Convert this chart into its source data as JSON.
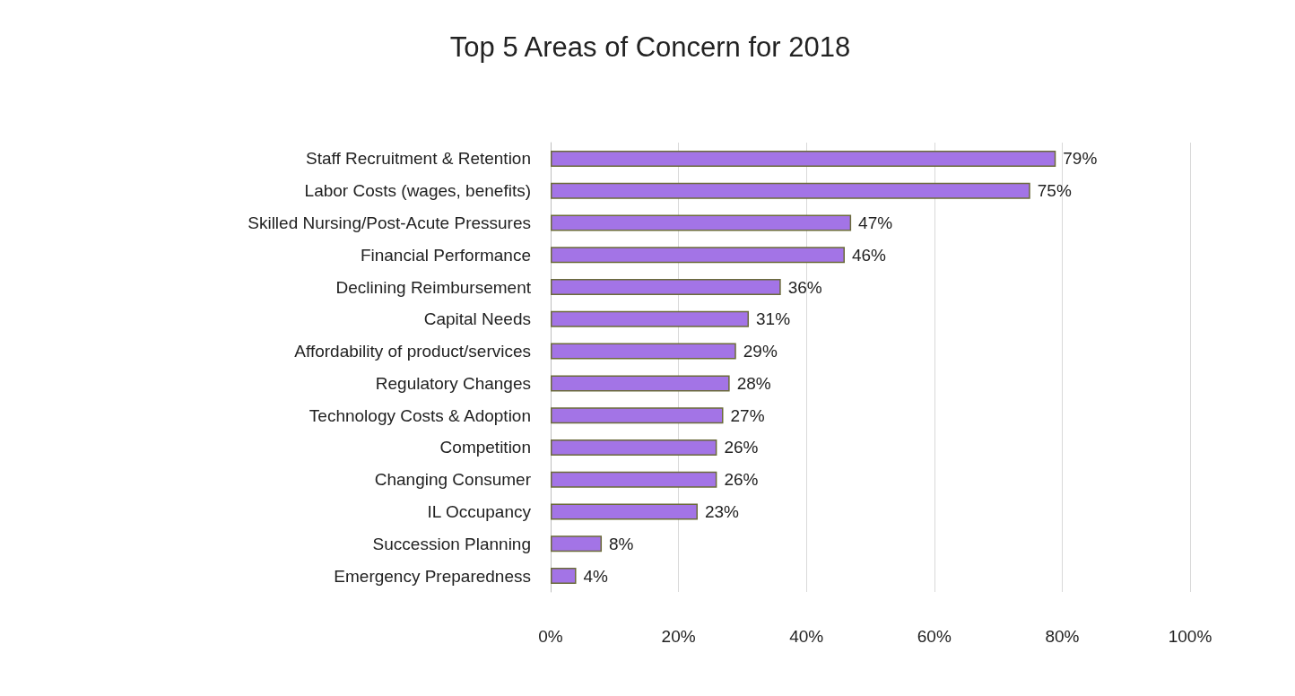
{
  "chart_data": {
    "type": "bar",
    "orientation": "horizontal",
    "title": "Top 5 Areas of Concern for 2018",
    "categories": [
      "Staff Recruitment & Retention",
      "Labor Costs (wages, benefits)",
      "Skilled Nursing/Post-Acute Pressures",
      "Financial Performance",
      "Declining Reimbursement",
      "Capital Needs",
      "Affordability of product/services",
      "Regulatory Changes",
      "Technology Costs & Adoption",
      "Competition",
      "Changing Consumer",
      "IL Occupancy",
      "Succession Planning",
      "Emergency Preparedness"
    ],
    "values": [
      79,
      75,
      47,
      46,
      36,
      31,
      29,
      28,
      27,
      26,
      26,
      23,
      8,
      4
    ],
    "value_labels": [
      "79%",
      "75%",
      "47%",
      "46%",
      "36%",
      "31%",
      "29%",
      "28%",
      "27%",
      "26%",
      "26%",
      "23%",
      "8%",
      "4%"
    ],
    "color": "#a374e6",
    "xlim": [
      0,
      100
    ],
    "xticks": [
      {
        "value": 0,
        "label": "0%"
      },
      {
        "value": 20,
        "label": "20%"
      },
      {
        "value": 40,
        "label": "40%"
      },
      {
        "value": 60,
        "label": "60%"
      },
      {
        "value": 80,
        "label": "80%"
      },
      {
        "value": 100,
        "label": "100%"
      }
    ],
    "grid": "x"
  }
}
